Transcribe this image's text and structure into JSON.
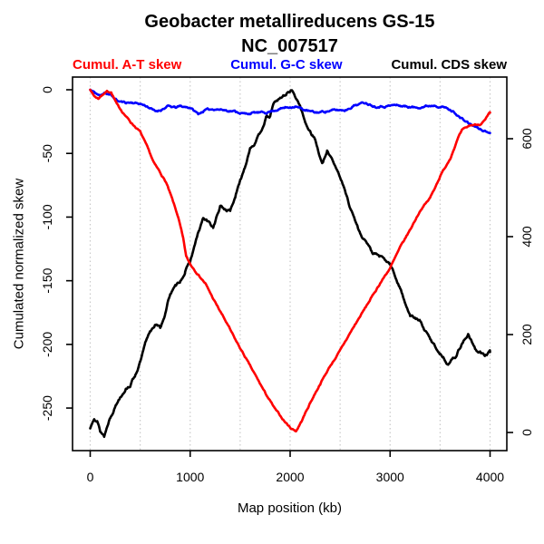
{
  "title": "Geobacter metallireducens GS-15",
  "subtitle": "NC_007517",
  "legend": [
    {
      "label": "Cumul. A-T skew",
      "color": "#ff0000"
    },
    {
      "label": "Cumul. G-C skew",
      "color": "#0000ff"
    },
    {
      "label": "Cumul. CDS skew",
      "color": "#000000"
    }
  ],
  "chart_data": {
    "type": "line",
    "title": "Geobacter metallireducens GS-15",
    "subtitle": "NC_007517",
    "xlabel": "Map position (kb)",
    "ylabel_left": "Cumulated normalized skew",
    "x_range_kb": [
      0,
      4000
    ],
    "y_left_range": [
      -283,
      10
    ],
    "grid": "dotted vertical gridlines every 500 kb",
    "legend_position": "top",
    "axes": {
      "x_tick_values": [
        0,
        1000,
        2000,
        3000,
        4000
      ],
      "x_tick_labels": [
        "0",
        "1000",
        "2000",
        "3000",
        "4000"
      ],
      "x_gridlines_kb": [
        0,
        500,
        1000,
        1500,
        2000,
        2500,
        3000,
        3500,
        4000
      ],
      "y_left_tick_values": [
        0,
        -50,
        -100,
        -150,
        -200,
        -250
      ],
      "y_left_tick_labels": [
        "0",
        "-50",
        "-100",
        "-150",
        "-200",
        "-250"
      ],
      "y_right_tick_values": [
        600,
        400,
        200,
        0
      ],
      "y_right_tick_labels": [
        "600",
        "400",
        "200",
        "0"
      ]
    },
    "value_units": "left axis (cumulated normalized skew); x in kb",
    "series": [
      {
        "id": "at-skew",
        "name": "Cumul. A-T skew",
        "color": "#ff0000",
        "points": [
          [
            0,
            0
          ],
          [
            40,
            -5
          ],
          [
            80,
            -7
          ],
          [
            120,
            -4
          ],
          [
            170,
            -1
          ],
          [
            210,
            -2
          ],
          [
            270,
            -12
          ],
          [
            300,
            -15
          ],
          [
            400,
            -25
          ],
          [
            500,
            -33
          ],
          [
            570,
            -45
          ],
          [
            640,
            -58
          ],
          [
            700,
            -65
          ],
          [
            760,
            -73
          ],
          [
            820,
            -86
          ],
          [
            880,
            -100
          ],
          [
            930,
            -117
          ],
          [
            960,
            -131
          ],
          [
            1000,
            -137
          ],
          [
            1060,
            -143
          ],
          [
            1150,
            -152
          ],
          [
            1250,
            -167
          ],
          [
            1350,
            -181
          ],
          [
            1450,
            -196
          ],
          [
            1550,
            -210
          ],
          [
            1650,
            -224
          ],
          [
            1750,
            -238
          ],
          [
            1850,
            -251
          ],
          [
            1950,
            -261
          ],
          [
            2010,
            -266
          ],
          [
            2060,
            -268
          ],
          [
            2110,
            -261
          ],
          [
            2200,
            -246
          ],
          [
            2300,
            -231
          ],
          [
            2400,
            -217
          ],
          [
            2500,
            -205
          ],
          [
            2600,
            -191
          ],
          [
            2700,
            -178
          ],
          [
            2800,
            -165
          ],
          [
            2900,
            -152
          ],
          [
            3000,
            -140
          ],
          [
            3100,
            -124
          ],
          [
            3200,
            -110
          ],
          [
            3300,
            -95
          ],
          [
            3400,
            -85
          ],
          [
            3500,
            -68
          ],
          [
            3600,
            -54
          ],
          [
            3680,
            -38
          ],
          [
            3720,
            -32
          ],
          [
            3800,
            -28
          ],
          [
            3900,
            -27
          ],
          [
            3950,
            -24
          ],
          [
            4000,
            -18
          ]
        ]
      },
      {
        "id": "gc-skew",
        "name": "Cumul. G-C skew",
        "color": "#0000ff",
        "points": [
          [
            0,
            0
          ],
          [
            60,
            -3
          ],
          [
            100,
            -5
          ],
          [
            140,
            -2
          ],
          [
            200,
            -4
          ],
          [
            280,
            -9
          ],
          [
            350,
            -10
          ],
          [
            420,
            -10
          ],
          [
            500,
            -11
          ],
          [
            570,
            -13
          ],
          [
            650,
            -17
          ],
          [
            700,
            -16
          ],
          [
            780,
            -13
          ],
          [
            850,
            -14
          ],
          [
            900,
            -13
          ],
          [
            1000,
            -14
          ],
          [
            1080,
            -19
          ],
          [
            1150,
            -16
          ],
          [
            1250,
            -15
          ],
          [
            1350,
            -16
          ],
          [
            1450,
            -17
          ],
          [
            1550,
            -19
          ],
          [
            1650,
            -18
          ],
          [
            1750,
            -18
          ],
          [
            1850,
            -16
          ],
          [
            1950,
            -14
          ],
          [
            2050,
            -13
          ],
          [
            2150,
            -16
          ],
          [
            2250,
            -18
          ],
          [
            2350,
            -17
          ],
          [
            2450,
            -16
          ],
          [
            2550,
            -16
          ],
          [
            2650,
            -12
          ],
          [
            2750,
            -10
          ],
          [
            2850,
            -13
          ],
          [
            2950,
            -13
          ],
          [
            3050,
            -12
          ],
          [
            3150,
            -13
          ],
          [
            3250,
            -14
          ],
          [
            3350,
            -13
          ],
          [
            3450,
            -12
          ],
          [
            3550,
            -14
          ],
          [
            3650,
            -18
          ],
          [
            3700,
            -22
          ],
          [
            3800,
            -27
          ],
          [
            3900,
            -31
          ],
          [
            4000,
            -34
          ]
        ]
      },
      {
        "id": "cds-skew",
        "name": "Cumul. CDS skew",
        "color": "#000000",
        "points": [
          [
            0,
            -266
          ],
          [
            40,
            -257
          ],
          [
            70,
            -260
          ],
          [
            100,
            -268
          ],
          [
            140,
            -272
          ],
          [
            200,
            -257
          ],
          [
            260,
            -247
          ],
          [
            300,
            -241
          ],
          [
            360,
            -234
          ],
          [
            400,
            -232
          ],
          [
            450,
            -224
          ],
          [
            500,
            -214
          ],
          [
            550,
            -200
          ],
          [
            600,
            -190
          ],
          [
            650,
            -184
          ],
          [
            700,
            -187
          ],
          [
            750,
            -176
          ],
          [
            800,
            -160
          ],
          [
            850,
            -155
          ],
          [
            900,
            -150
          ],
          [
            950,
            -143
          ],
          [
            1000,
            -135
          ],
          [
            1060,
            -118
          ],
          [
            1130,
            -101
          ],
          [
            1180,
            -104
          ],
          [
            1230,
            -108
          ],
          [
            1300,
            -92
          ],
          [
            1350,
            -94
          ],
          [
            1400,
            -95
          ],
          [
            1450,
            -84
          ],
          [
            1500,
            -72
          ],
          [
            1550,
            -60
          ],
          [
            1600,
            -45
          ],
          [
            1660,
            -41
          ],
          [
            1700,
            -34
          ],
          [
            1760,
            -22
          ],
          [
            1800,
            -21
          ],
          [
            1840,
            -10
          ],
          [
            1900,
            -7
          ],
          [
            1950,
            -4
          ],
          [
            2010,
            0
          ],
          [
            2040,
            -3
          ],
          [
            2070,
            -9
          ],
          [
            2100,
            -12
          ],
          [
            2150,
            -26
          ],
          [
            2200,
            -32
          ],
          [
            2250,
            -39
          ],
          [
            2320,
            -59
          ],
          [
            2370,
            -49
          ],
          [
            2420,
            -54
          ],
          [
            2500,
            -68
          ],
          [
            2600,
            -92
          ],
          [
            2700,
            -113
          ],
          [
            2760,
            -119
          ],
          [
            2820,
            -128
          ],
          [
            2900,
            -131
          ],
          [
            3000,
            -137
          ],
          [
            3100,
            -156
          ],
          [
            3200,
            -177
          ],
          [
            3300,
            -182
          ],
          [
            3400,
            -196
          ],
          [
            3500,
            -207
          ],
          [
            3580,
            -215
          ],
          [
            3650,
            -210
          ],
          [
            3720,
            -199
          ],
          [
            3780,
            -192
          ],
          [
            3850,
            -204
          ],
          [
            3900,
            -206
          ],
          [
            3950,
            -209
          ],
          [
            4000,
            -206
          ]
        ]
      }
    ]
  }
}
